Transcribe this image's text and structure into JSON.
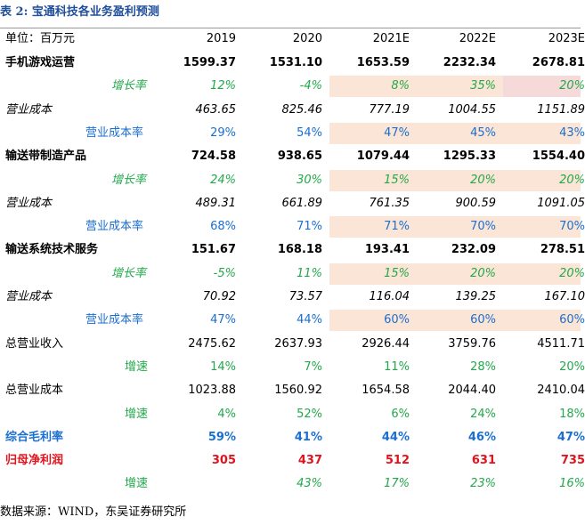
{
  "header": {
    "title": "表 2:  宝通科技各业务盈利预测"
  },
  "table": {
    "columns": [
      "单位：百万元",
      "2019",
      "2020",
      "2021E",
      "2022E",
      "2023E"
    ],
    "rows": [
      [
        "手机游戏运营",
        "1599.37",
        "1531.10",
        "1653.59",
        "2232.34",
        "2678.81"
      ],
      [
        "增长率",
        "12%",
        "-4%",
        "8%",
        "35%",
        "20%"
      ],
      [
        "营业成本",
        "463.65",
        "825.46",
        "777.19",
        "1004.55",
        "1151.89"
      ],
      [
        "营业成本率",
        "29%",
        "54%",
        "47%",
        "45%",
        "43%"
      ],
      [
        "输送带制造产品",
        "724.58",
        "938.65",
        "1079.44",
        "1295.33",
        "1554.40"
      ],
      [
        "增长率",
        "24%",
        "30%",
        "15%",
        "20%",
        "20%"
      ],
      [
        "营业成本",
        "489.31",
        "661.89",
        "761.35",
        "900.59",
        "1091.05"
      ],
      [
        "营业成本率",
        "68%",
        "71%",
        "71%",
        "70%",
        "70%"
      ],
      [
        "输送系统技术服务",
        "151.67",
        "168.18",
        "193.41",
        "232.09",
        "278.51"
      ],
      [
        "增长率",
        "-5%",
        "11%",
        "15%",
        "20%",
        "20%"
      ],
      [
        "营业成本",
        "70.92",
        "73.57",
        "116.04",
        "139.25",
        "167.10"
      ],
      [
        "营业成本率",
        "47%",
        "44%",
        "60%",
        "60%",
        "60%"
      ],
      [
        "总营业收入",
        "2475.62",
        "2637.93",
        "2926.44",
        "3759.76",
        "4511.71"
      ],
      [
        "增速",
        "14%",
        "7%",
        "11%",
        "28%",
        "20%"
      ],
      [
        "总营业成本",
        "1023.88",
        "1560.92",
        "1654.58",
        "2044.40",
        "2410.04"
      ],
      [
        "增速",
        "4%",
        "52%",
        "6%",
        "24%",
        "18%"
      ],
      [
        "综合毛利率",
        "59%",
        "41%",
        "44%",
        "46%",
        "47%"
      ],
      [
        "归母净利润",
        "305",
        "437",
        "512",
        "631",
        "735"
      ],
      [
        "增速",
        null,
        "43%",
        "17%",
        "23%",
        "16%"
      ]
    ]
  },
  "footer": {
    "source": "数据来源：WIND，东吴证券研究所"
  }
}
